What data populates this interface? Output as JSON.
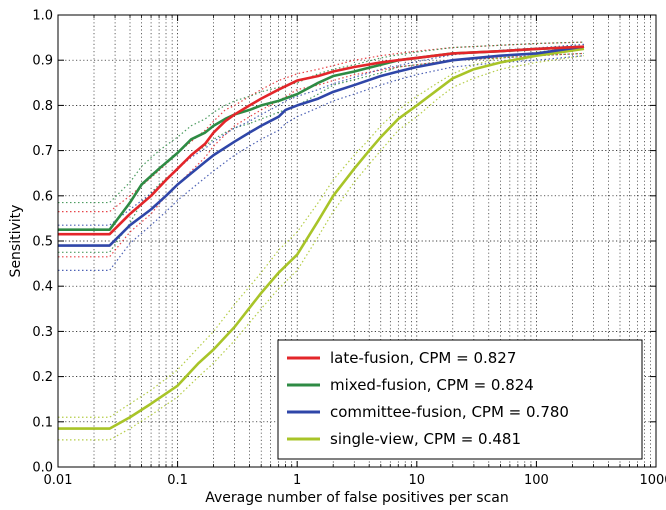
{
  "chart_data": {
    "type": "line",
    "title": "",
    "xlabel": "Average number of false positives per scan",
    "ylabel": "Sensitivity",
    "xscale": "log",
    "xlim": [
      0.01,
      1000
    ],
    "ylim": [
      0.0,
      1.0
    ],
    "grid": "on (dotted, major and minor)",
    "legend_position": "lower-right",
    "xticks": [
      "0.01",
      "0.1",
      "1",
      "10",
      "100",
      "1000"
    ],
    "yticks": [
      "0.0",
      "0.1",
      "0.2",
      "0.3",
      "0.4",
      "0.5",
      "0.6",
      "0.7",
      "0.8",
      "0.9",
      "1.0"
    ],
    "series": [
      {
        "name": "late-fusion, CPM = 0.827",
        "color": "#e3262a",
        "x": [
          0.01,
          0.027,
          0.04,
          0.06,
          0.08,
          0.1,
          0.13,
          0.17,
          0.2,
          0.25,
          0.3,
          0.4,
          0.5,
          0.7,
          1,
          1.5,
          2,
          3,
          5,
          7,
          10,
          20,
          50,
          100,
          250
        ],
        "y": [
          0.515,
          0.515,
          0.56,
          0.6,
          0.635,
          0.66,
          0.69,
          0.715,
          0.74,
          0.765,
          0.78,
          0.8,
          0.815,
          0.835,
          0.855,
          0.865,
          0.875,
          0.885,
          0.895,
          0.9,
          0.905,
          0.915,
          0.92,
          0.925,
          0.93
        ],
        "ci_upper": [
          0.565,
          0.565,
          0.6,
          0.64,
          0.67,
          0.695,
          0.72,
          0.745,
          0.765,
          0.79,
          0.8,
          0.82,
          0.835,
          0.855,
          0.87,
          0.88,
          0.888,
          0.9,
          0.91,
          0.915,
          0.92,
          0.928,
          0.933,
          0.937,
          0.94
        ],
        "ci_lower": [
          0.465,
          0.465,
          0.52,
          0.56,
          0.6,
          0.625,
          0.655,
          0.685,
          0.71,
          0.735,
          0.755,
          0.775,
          0.79,
          0.81,
          0.835,
          0.845,
          0.855,
          0.868,
          0.878,
          0.885,
          0.89,
          0.9,
          0.905,
          0.91,
          0.915
        ]
      },
      {
        "name": "mixed-fusion, CPM = 0.824",
        "color": "#2e8b44",
        "x": [
          0.01,
          0.027,
          0.04,
          0.05,
          0.07,
          0.1,
          0.13,
          0.17,
          0.2,
          0.25,
          0.3,
          0.4,
          0.5,
          0.7,
          1,
          1.5,
          2,
          3,
          5,
          7,
          10,
          20,
          50,
          100,
          250
        ],
        "y": [
          0.525,
          0.525,
          0.585,
          0.625,
          0.66,
          0.695,
          0.725,
          0.74,
          0.755,
          0.77,
          0.78,
          0.79,
          0.8,
          0.81,
          0.825,
          0.85,
          0.865,
          0.875,
          0.89,
          0.9,
          0.905,
          0.915,
          0.92,
          0.925,
          0.93
        ],
        "ci_upper": [
          0.585,
          0.585,
          0.63,
          0.665,
          0.7,
          0.73,
          0.755,
          0.77,
          0.785,
          0.8,
          0.81,
          0.82,
          0.83,
          0.84,
          0.85,
          0.87,
          0.88,
          0.89,
          0.905,
          0.912,
          0.918,
          0.928,
          0.933,
          0.937,
          0.94
        ],
        "ci_lower": [
          0.475,
          0.475,
          0.54,
          0.585,
          0.625,
          0.66,
          0.69,
          0.71,
          0.725,
          0.74,
          0.75,
          0.76,
          0.77,
          0.785,
          0.8,
          0.825,
          0.845,
          0.857,
          0.872,
          0.885,
          0.89,
          0.9,
          0.905,
          0.91,
          0.915
        ]
      },
      {
        "name": "committee-fusion, CPM = 0.780",
        "color": "#2f46a8",
        "x": [
          0.01,
          0.027,
          0.04,
          0.06,
          0.08,
          0.1,
          0.13,
          0.17,
          0.2,
          0.3,
          0.4,
          0.5,
          0.7,
          0.8,
          1,
          1.5,
          2,
          3,
          5,
          7,
          10,
          20,
          50,
          100,
          250
        ],
        "y": [
          0.49,
          0.49,
          0.535,
          0.57,
          0.6,
          0.625,
          0.65,
          0.675,
          0.69,
          0.72,
          0.74,
          0.755,
          0.775,
          0.79,
          0.8,
          0.815,
          0.83,
          0.845,
          0.865,
          0.875,
          0.885,
          0.9,
          0.91,
          0.915,
          0.93
        ],
        "ci_upper": [
          0.535,
          0.535,
          0.57,
          0.605,
          0.635,
          0.66,
          0.685,
          0.705,
          0.72,
          0.75,
          0.765,
          0.78,
          0.8,
          0.81,
          0.82,
          0.835,
          0.848,
          0.862,
          0.88,
          0.888,
          0.897,
          0.912,
          0.922,
          0.927,
          0.935
        ],
        "ci_lower": [
          0.435,
          0.435,
          0.495,
          0.535,
          0.565,
          0.59,
          0.615,
          0.64,
          0.655,
          0.69,
          0.71,
          0.725,
          0.745,
          0.76,
          0.775,
          0.795,
          0.81,
          0.825,
          0.845,
          0.857,
          0.868,
          0.885,
          0.895,
          0.9,
          0.91
        ]
      },
      {
        "name": "single-view, CPM = 0.481",
        "color": "#a8c428",
        "x": [
          0.01,
          0.027,
          0.04,
          0.06,
          0.1,
          0.15,
          0.2,
          0.3,
          0.5,
          0.7,
          1,
          1.5,
          2,
          3,
          4,
          5,
          7,
          10,
          15,
          20,
          30,
          50,
          100,
          250
        ],
        "y": [
          0.085,
          0.085,
          0.11,
          0.14,
          0.18,
          0.23,
          0.26,
          0.31,
          0.385,
          0.43,
          0.47,
          0.545,
          0.6,
          0.66,
          0.7,
          0.73,
          0.77,
          0.8,
          0.835,
          0.86,
          0.88,
          0.895,
          0.91,
          0.925
        ],
        "ci_upper": [
          0.11,
          0.11,
          0.14,
          0.17,
          0.215,
          0.265,
          0.3,
          0.36,
          0.43,
          0.48,
          0.52,
          0.585,
          0.635,
          0.69,
          0.725,
          0.755,
          0.79,
          0.82,
          0.85,
          0.87,
          0.89,
          0.905,
          0.918,
          0.93
        ],
        "ci_lower": [
          0.06,
          0.06,
          0.085,
          0.115,
          0.155,
          0.2,
          0.23,
          0.28,
          0.35,
          0.395,
          0.435,
          0.51,
          0.565,
          0.63,
          0.67,
          0.7,
          0.745,
          0.775,
          0.815,
          0.84,
          0.86,
          0.88,
          0.895,
          0.91
        ]
      }
    ]
  }
}
